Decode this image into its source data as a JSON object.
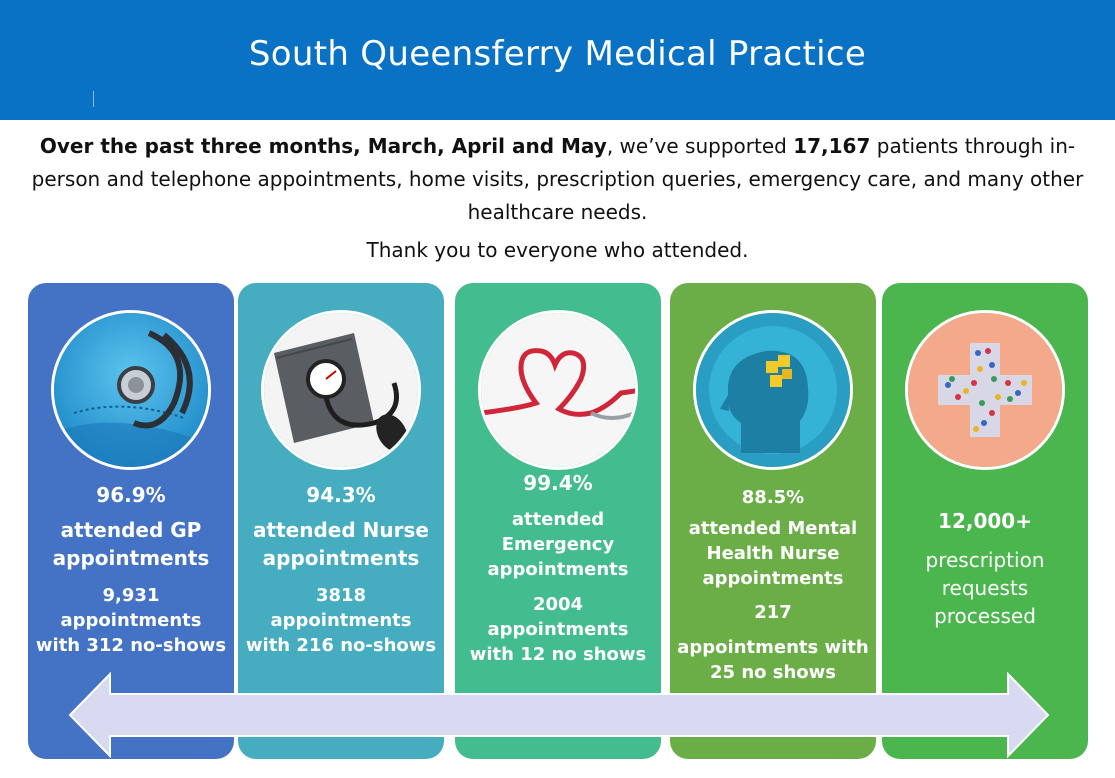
{
  "header": {
    "title": "South Queensferry Medical Practice"
  },
  "intro": {
    "lead_bold": "Over the past three months, March, April and May",
    "text_1": ", we’ve supported ",
    "patients_bold": "17,167",
    "text_2": " patients through in-person and telephone appointments, home visits, prescription queries, emergency care, and many other healthcare needs."
  },
  "thanks": "Thank you to everyone who attended.",
  "cards": [
    {
      "icon": "stethoscope-icon",
      "pct": "96.9%",
      "label_1": "attended GP",
      "label_2": "appointments",
      "count_1": "9,931",
      "count_2": "appointments",
      "count_3": "with 312 no-shows",
      "color": "#4472c4"
    },
    {
      "icon": "blood-pressure-icon",
      "pct": "94.3%",
      "label_1": "attended Nurse",
      "label_2": "appointments",
      "count_1": "3818",
      "count_2": "appointments",
      "count_3": "with 216 no-shows",
      "color": "#46adc1"
    },
    {
      "icon": "heart-stethoscope-icon",
      "pct": "99.4%",
      "label_1": "attended",
      "label_2": "Emergency",
      "label_3": "appointments",
      "count_1": "2004",
      "count_2": "appointments",
      "count_3": "with 12 no shows",
      "color": "#43bd90"
    },
    {
      "icon": "head-puzzle-icon",
      "pct": "88.5%",
      "label_1": "attended Mental",
      "label_2": "Health Nurse",
      "label_3": "appointments",
      "count_1": "217",
      "count_2": "appointments with",
      "count_3": "25 no shows",
      "color": "#6bae48"
    },
    {
      "icon": "pill-cross-icon",
      "pct": "12,000+",
      "label_1": "prescription",
      "label_2": "requests",
      "label_3": "processed",
      "color": "#4bb54e"
    }
  ]
}
